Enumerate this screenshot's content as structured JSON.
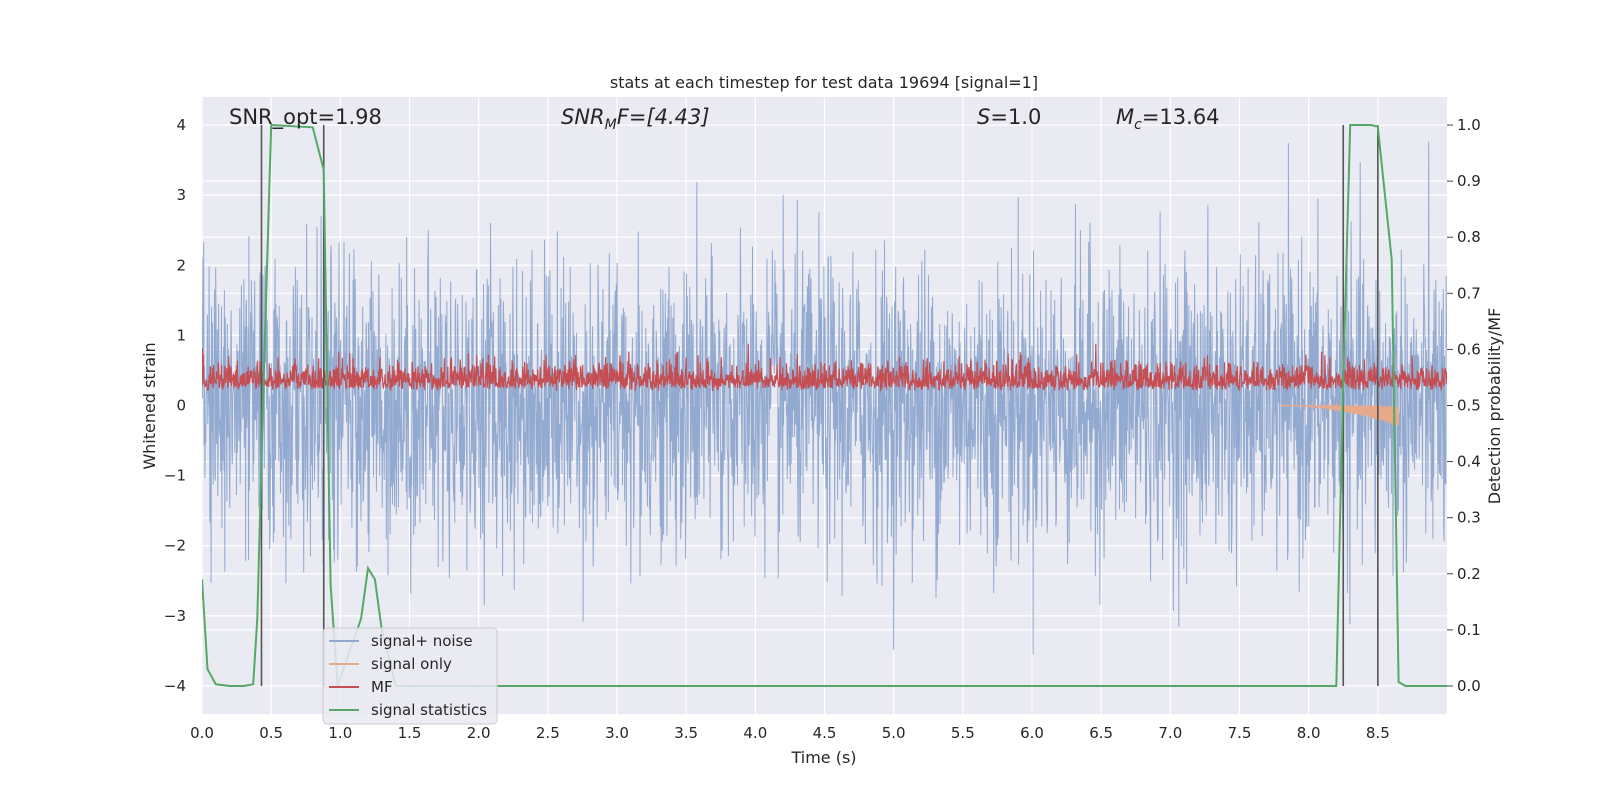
{
  "chart_data": {
    "type": "line",
    "title": "stats at each timestep for test data 19694 [signal=1]",
    "xlabel": "Time (s)",
    "ylabel": "Whitened strain",
    "y2label": "Detection probability/MF",
    "xlim": [
      0.0,
      9.0
    ],
    "ylim": [
      -4.4,
      4.4
    ],
    "y2lim": [
      -0.05,
      1.05
    ],
    "x_ticks": [
      "0.0",
      "0.5",
      "1.0",
      "1.5",
      "2.0",
      "2.5",
      "3.0",
      "3.5",
      "4.0",
      "4.5",
      "5.0",
      "5.5",
      "6.0",
      "6.5",
      "7.0",
      "7.5",
      "8.0",
      "8.5"
    ],
    "y_ticks": [
      "4",
      "3",
      "2",
      "1",
      "0",
      "−1",
      "−2",
      "−3",
      "−4"
    ],
    "y2_ticks": [
      "1.0",
      "0.9",
      "0.8",
      "0.7",
      "0.6",
      "0.5",
      "0.4",
      "0.3",
      "0.2",
      "0.1",
      "0.0"
    ],
    "annotations": {
      "snr_opt": "SNR_opt=1.98",
      "snr_mf_base": "SNR",
      "snr_mf_sub": "M",
      "snr_mf_rest": "F=[4.43]",
      "s_label": "S",
      "s_value": "=1.0",
      "mc_label": "M",
      "mc_sub": "c",
      "mc_value": "=13.64"
    },
    "legend": {
      "position": "lower-left",
      "entries": [
        {
          "label": "signal+ noise",
          "color": "#92a9d0"
        },
        {
          "label": "signal only",
          "color": "#e8a98a"
        },
        {
          "label": "MF",
          "color": "#c44e52"
        },
        {
          "label": "signal statistics",
          "color": "#55a868"
        }
      ]
    },
    "series": [
      {
        "name": "signal+ noise",
        "axis": "left",
        "style": "dense noise",
        "approx_range": [
          -4.0,
          4.0
        ]
      },
      {
        "name": "signal only",
        "axis": "left",
        "style": "chirp",
        "t_start": 7.8,
        "t_end": 8.65,
        "approx_amplitude_end": 0.3
      },
      {
        "name": "MF",
        "axis": "right",
        "style": "dense noise",
        "approx_range": [
          0.5,
          0.61
        ]
      },
      {
        "name": "signal statistics",
        "axis": "right",
        "x": [
          0.0,
          0.04,
          0.1,
          0.2,
          0.3,
          0.37,
          0.4,
          0.44,
          0.5,
          0.8,
          0.88,
          0.93,
          0.98,
          1.05,
          1.15,
          1.2,
          1.25,
          1.3,
          1.4,
          2.0,
          3.0,
          4.0,
          5.0,
          6.0,
          7.0,
          8.0,
          8.2,
          8.25,
          8.3,
          8.45,
          8.5,
          8.6,
          8.65,
          8.7,
          9.0
        ],
        "values": [
          0.19,
          0.03,
          0.003,
          0.0,
          0.0,
          0.003,
          0.12,
          0.5,
          1.0,
          0.996,
          0.92,
          0.18,
          0.0,
          0.05,
          0.12,
          0.21,
          0.19,
          0.1,
          0.0,
          0.0,
          0.0,
          0.0,
          0.0,
          0.0,
          0.0,
          0.0,
          0.0,
          0.55,
          1.0,
          1.0,
          0.997,
          0.76,
          0.007,
          0.0,
          0.0
        ]
      }
    ],
    "vertical_markers": [
      0.43,
      0.88,
      8.25,
      8.5
    ],
    "colors": {
      "axes_bg": "#eaeaf2",
      "grid": "#ffffff",
      "noise": "#92a9d0",
      "signal": "#e8a98a",
      "mf": "#c44e52",
      "stat": "#55a868",
      "marker": "#555555"
    }
  }
}
